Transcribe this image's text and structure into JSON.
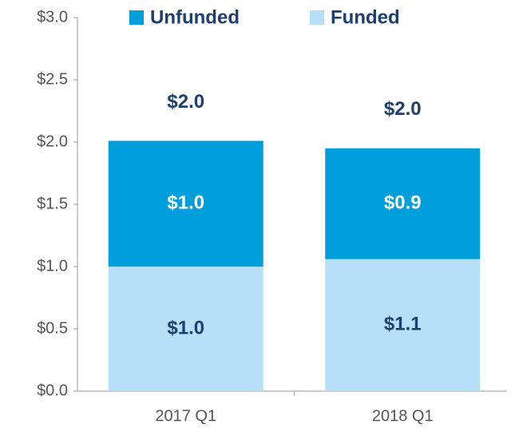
{
  "chart_data": {
    "type": "stacked-bar",
    "categories": [
      "2017 Q1",
      "2018 Q1"
    ],
    "series": [
      {
        "name": "Funded",
        "color": "#b7e0f8",
        "values": [
          1.0,
          1.06
        ],
        "value_labels": [
          "$1.0",
          "$1.1"
        ]
      },
      {
        "name": "Unfunded",
        "color": "#009fdc",
        "values": [
          1.01,
          0.89
        ],
        "value_labels": [
          "$1.0",
          "$0.9"
        ]
      }
    ],
    "totals": [
      2.01,
      1.95
    ],
    "total_labels": [
      "$2.0",
      "$2.0"
    ],
    "ylim": [
      0,
      3.0
    ],
    "yticks": [
      {
        "value": 0,
        "label": "$0.0"
      },
      {
        "value": 0.5,
        "label": "$0.5"
      },
      {
        "value": 1.0,
        "label": "$1.0"
      },
      {
        "value": 1.5,
        "label": "$1.5"
      },
      {
        "value": 2.0,
        "label": "$2.0"
      },
      {
        "value": 2.5,
        "label": "$2.5"
      },
      {
        "value": 3.0,
        "label": "$3.0"
      }
    ],
    "legend": "top"
  }
}
